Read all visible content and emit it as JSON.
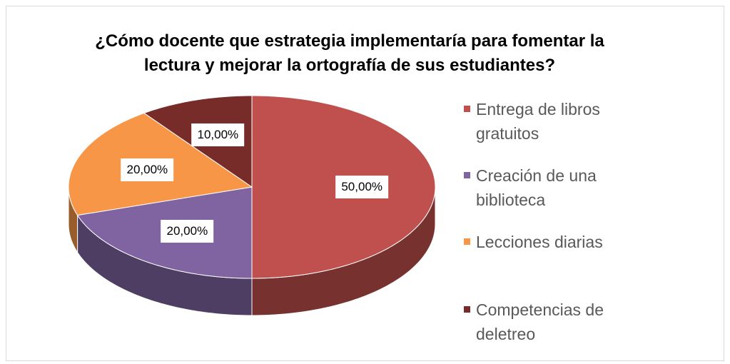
{
  "chart_data": {
    "type": "pie",
    "title": "¿Cómo docente que estrategia implementaría para fomentar la lectura y mejorar la ortografía de sus estudiantes?",
    "categories": [
      "Entrega de libros gratuitos",
      "Creación de una biblioteca",
      "Lecciones diarias",
      "Competencias de deletreo"
    ],
    "values": [
      50,
      20,
      20,
      10
    ],
    "value_labels": [
      "50,00%",
      "20,00%",
      "20,00%",
      "10,00%"
    ],
    "colors": [
      "#c0504d",
      "#8064a2",
      "#f79646",
      "#772c2a"
    ],
    "legend": "right"
  }
}
